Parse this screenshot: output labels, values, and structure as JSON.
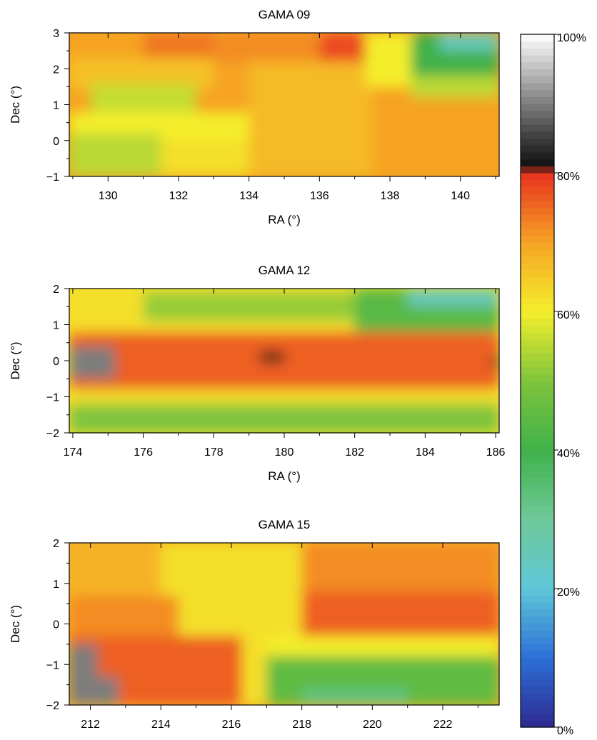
{
  "chart_data": [
    {
      "type": "heatmap",
      "title": "GAMA 09",
      "xlabel": "RA (°)",
      "ylabel": "Dec (°)",
      "xlim": [
        128.9,
        141.1
      ],
      "ylim": [
        -1,
        3
      ],
      "xticks": [
        130,
        132,
        134,
        136,
        138,
        140
      ],
      "xticks_minor": [
        129,
        131,
        133,
        135,
        137,
        139,
        141
      ],
      "yticks": [
        -1,
        0,
        1,
        2,
        3
      ],
      "yticks_minor": [
        -0.5,
        0.5,
        1.5,
        2.5
      ],
      "tick_labels_x": [
        "130",
        "132",
        "134",
        "136",
        "138",
        "140"
      ],
      "tick_labels_y": [
        "−1",
        "0",
        "1",
        "2",
        "3"
      ],
      "value_unit": "percent",
      "bands": [
        {
          "ra": [
            128.9,
            131.0
          ],
          "dec": [
            2.3,
            3.0
          ],
          "value": 70
        },
        {
          "ra": [
            131.0,
            133.0
          ],
          "dec": [
            2.3,
            3.0
          ],
          "value": 74
        },
        {
          "ra": [
            133.0,
            136.0
          ],
          "dec": [
            2.2,
            3.0
          ],
          "value": 72
        },
        {
          "ra": [
            136.0,
            137.4
          ],
          "dec": [
            1.6,
            3.0
          ],
          "value": 78
        },
        {
          "ra": [
            128.9,
            133.0
          ],
          "dec": [
            1.4,
            2.3
          ],
          "value": 66
        },
        {
          "ra": [
            129.5,
            132.5
          ],
          "dec": [
            0.8,
            1.6
          ],
          "value": 56
        },
        {
          "ra": [
            128.9,
            134.0
          ],
          "dec": [
            -0.2,
            0.8
          ],
          "value": 60
        },
        {
          "ra": [
            128.9,
            131.5
          ],
          "dec": [
            -1.0,
            0.2
          ],
          "value": 55
        },
        {
          "ra": [
            131.5,
            134.5
          ],
          "dec": [
            -1.0,
            0.0
          ],
          "value": 62
        },
        {
          "ra": [
            134.0,
            137.5
          ],
          "dec": [
            -1.0,
            2.2
          ],
          "value": 67
        },
        {
          "ra": [
            137.5,
            141.1
          ],
          "dec": [
            -1.0,
            1.5
          ],
          "value": 70
        },
        {
          "ra": [
            137.3,
            138.6
          ],
          "dec": [
            1.5,
            3.0
          ],
          "value": 60
        },
        {
          "ra": [
            138.6,
            141.1
          ],
          "dec": [
            1.2,
            1.8
          ],
          "value": 55
        },
        {
          "ra": [
            138.6,
            141.1
          ],
          "dec": [
            1.8,
            3.0
          ],
          "value": 40
        },
        {
          "ra": [
            139.4,
            141.1
          ],
          "dec": [
            2.5,
            3.0
          ],
          "value": 25
        }
      ]
    },
    {
      "type": "heatmap",
      "title": "GAMA 12",
      "xlabel": "RA (°)",
      "ylabel": "Dec (°)",
      "xlim": [
        173.9,
        186.1
      ],
      "ylim": [
        -2,
        2
      ],
      "xticks": [
        174,
        176,
        178,
        180,
        182,
        184,
        186
      ],
      "xticks_minor": [
        175,
        177,
        179,
        181,
        183,
        185
      ],
      "yticks": [
        -2,
        -1,
        0,
        1,
        2
      ],
      "yticks_minor": [
        -1.5,
        -0.5,
        0.5,
        1.5
      ],
      "tick_labels_x": [
        "174",
        "176",
        "178",
        "180",
        "182",
        "184",
        "186"
      ],
      "tick_labels_y": [
        "−2",
        "−1",
        "0",
        "1",
        "2"
      ],
      "value_unit": "percent",
      "bands": [
        {
          "ra": [
            173.9,
            186.1
          ],
          "dec": [
            0.7,
            2.0
          ],
          "value": 62
        },
        {
          "ra": [
            176.0,
            182.0
          ],
          "dec": [
            1.1,
            1.9
          ],
          "value": 52
        },
        {
          "ra": [
            182.0,
            186.1
          ],
          "dec": [
            0.8,
            2.0
          ],
          "value": 44
        },
        {
          "ra": [
            183.5,
            186.1
          ],
          "dec": [
            1.5,
            2.0
          ],
          "value": 25
        },
        {
          "ra": [
            173.9,
            186.1
          ],
          "dec": [
            -0.8,
            0.8
          ],
          "value": 76
        },
        {
          "ra": [
            173.9,
            186.1
          ],
          "dec": [
            -1.2,
            -0.8
          ],
          "value": 62
        },
        {
          "ra": [
            173.9,
            186.1
          ],
          "dec": [
            -2.0,
            -1.2
          ],
          "value": 50
        },
        {
          "ra": [
            173.9,
            175.2
          ],
          "dec": [
            -0.5,
            0.4
          ],
          "value": 90
        },
        {
          "ra": [
            179.3,
            180.0
          ],
          "dec": [
            -0.05,
            0.25
          ],
          "value": 82
        },
        {
          "ra": [
            185.9,
            186.1
          ],
          "dec": [
            -0.2,
            0.15
          ],
          "value": 82
        }
      ]
    },
    {
      "type": "heatmap",
      "title": "GAMA 15",
      "xlabel": "RA (°)",
      "ylabel": "Dec (°)",
      "xlim": [
        211.4,
        223.6
      ],
      "ylim": [
        -2,
        2
      ],
      "xticks": [
        212,
        214,
        216,
        218,
        220,
        222
      ],
      "xticks_minor": [
        213,
        215,
        217,
        219,
        221,
        223
      ],
      "yticks": [
        -2,
        -1,
        0,
        1,
        2
      ],
      "yticks_minor": [
        -1.5,
        -0.5,
        0.5,
        1.5
      ],
      "tick_labels_x": [
        "212",
        "214",
        "216",
        "218",
        "220",
        "222"
      ],
      "tick_labels_y": [
        "−2",
        "−1",
        "0",
        "1",
        "2"
      ],
      "value_unit": "percent",
      "bands": [
        {
          "ra": [
            211.4,
            214.0
          ],
          "dec": [
            0.7,
            2.0
          ],
          "value": 68
        },
        {
          "ra": [
            214.0,
            218.0
          ],
          "dec": [
            -0.3,
            2.0
          ],
          "value": 62
        },
        {
          "ra": [
            218.0,
            223.6
          ],
          "dec": [
            0.8,
            2.0
          ],
          "value": 72
        },
        {
          "ra": [
            218.0,
            223.6
          ],
          "dec": [
            -0.3,
            0.8
          ],
          "value": 76
        },
        {
          "ra": [
            211.4,
            214.5
          ],
          "dec": [
            -0.3,
            0.7
          ],
          "value": 72
        },
        {
          "ra": [
            211.4,
            216.3
          ],
          "dec": [
            -2.0,
            -0.3
          ],
          "value": 76
        },
        {
          "ra": [
            216.3,
            217.0
          ],
          "dec": [
            -2.0,
            -0.3
          ],
          "value": 62
        },
        {
          "ra": [
            217.0,
            223.6
          ],
          "dec": [
            -0.8,
            -0.3
          ],
          "value": 60
        },
        {
          "ra": [
            217.0,
            223.6
          ],
          "dec": [
            -2.0,
            -0.8
          ],
          "value": 45
        },
        {
          "ra": [
            218.0,
            221.0
          ],
          "dec": [
            -2.0,
            -1.6
          ],
          "value": 33
        },
        {
          "ra": [
            211.4,
            212.2
          ],
          "dec": [
            -2.0,
            -0.5
          ],
          "value": 90
        },
        {
          "ra": [
            212.2,
            212.8
          ],
          "dec": [
            -2.0,
            -1.3
          ],
          "value": 90
        }
      ]
    }
  ],
  "colorbar": {
    "min": 0,
    "max": 100,
    "ticks": [
      0,
      20,
      40,
      60,
      80,
      100
    ],
    "tick_labels": [
      "0%",
      "20%",
      "40%",
      "60%",
      "80%",
      "100%"
    ],
    "colors": {
      "0": "#2e2a8f",
      "10": "#2c6fd6",
      "20": "#5fc7d9",
      "30": "#6fc99a",
      "40": "#3fb14a",
      "50": "#7fc43c",
      "60": "#f4ee2c",
      "70": "#f6a324",
      "80": "#e8321f",
      "81": "#111111",
      "85": "#3c3c3c",
      "100": "#ffffff"
    }
  }
}
